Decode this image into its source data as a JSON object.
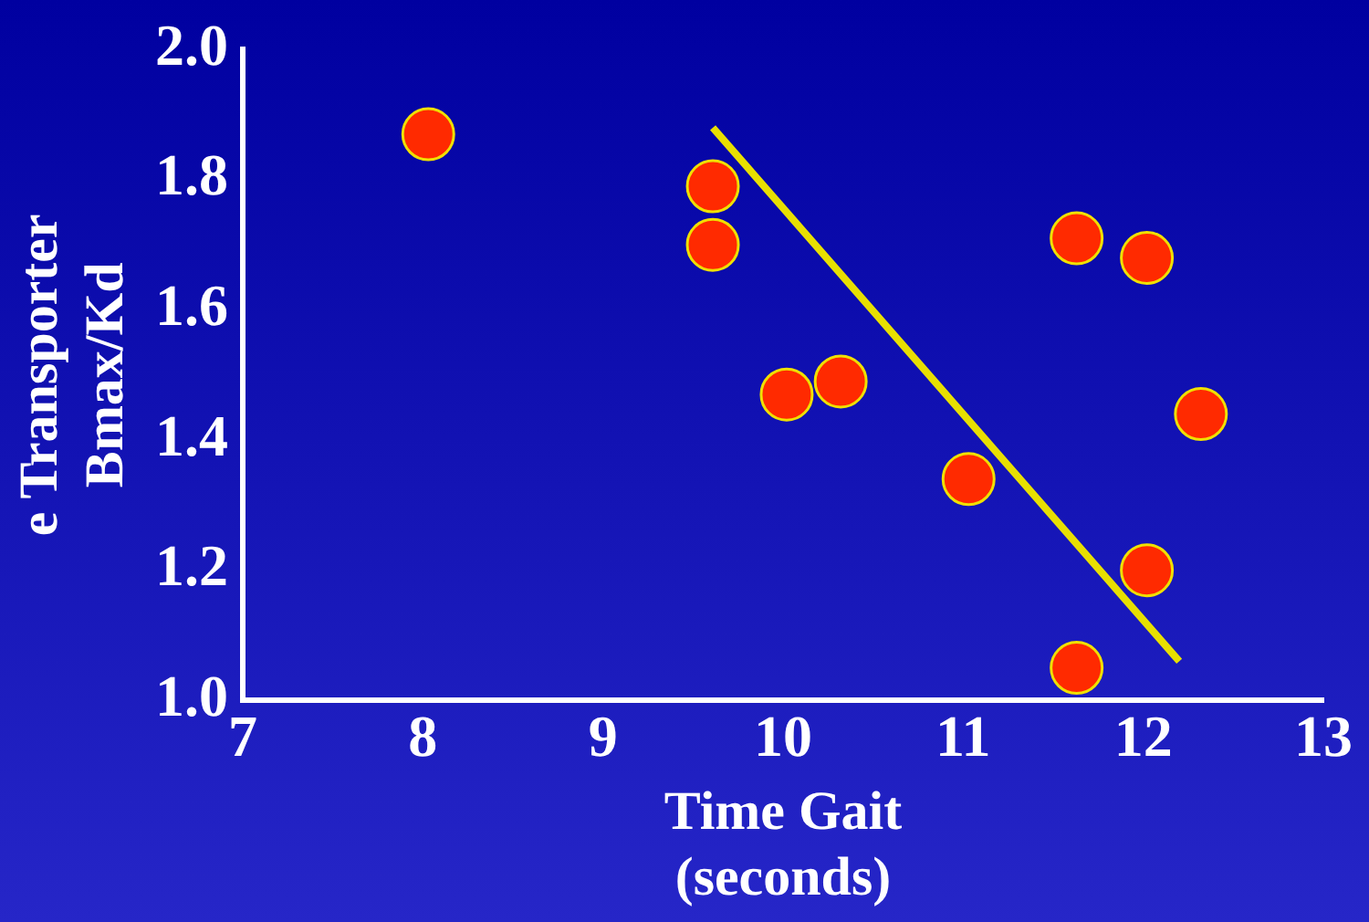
{
  "chart_data": {
    "type": "scatter",
    "xlabel": "Time Gait\n(seconds)",
    "ylabel": "e Transporter\nBmax/Kd",
    "xlim": [
      7,
      13
    ],
    "xticks": [
      7,
      8,
      9,
      10,
      11,
      12,
      13
    ],
    "ylim": [
      1.0,
      2.0
    ],
    "yticks": [
      {
        "value": 1,
        "label": "1.0"
      },
      1.2,
      1.4,
      1.6,
      1.8,
      {
        "value": 2,
        "label": "2.0"
      }
    ],
    "grid": false,
    "legend": false,
    "series": [
      {
        "marker": "circle",
        "color": "#ff2a00",
        "x": [
          8.03,
          9.61,
          9.61,
          10.02,
          10.32,
          11.03,
          11.63,
          12.02,
          12.32,
          12.02,
          11.63
        ],
        "values": [
          1.87,
          1.79,
          1.7,
          1.47,
          1.49,
          1.34,
          1.71,
          1.68,
          1.44,
          1.2,
          1.05
        ]
      },
      {
        "type": "line",
        "color": "#e8e000",
        "x": [
          9.61,
          12.2
        ],
        "values": [
          1.88,
          1.06
        ]
      }
    ]
  }
}
